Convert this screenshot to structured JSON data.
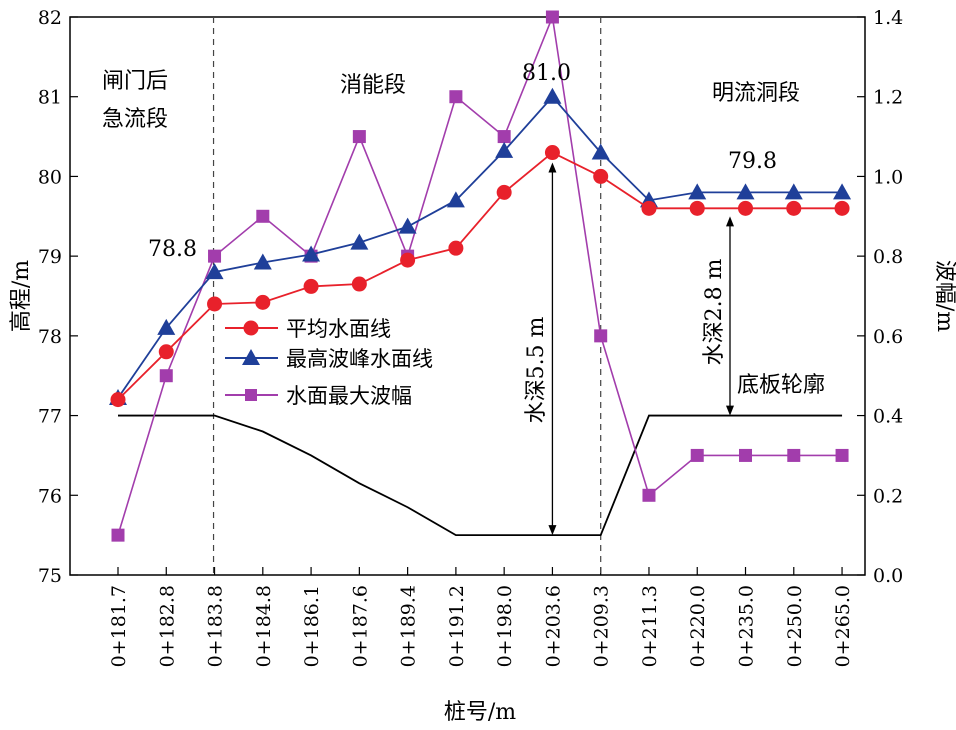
{
  "chart_data": {
    "type": "line",
    "x_label": "桩号/m",
    "y_left_label": "高程/m",
    "y_right_label": "波幅/m",
    "categories": [
      "0+181.7",
      "0+182.8",
      "0+183.8",
      "0+184.8",
      "0+186.1",
      "0+187.6",
      "0+189.4",
      "0+191.2",
      "0+198.0",
      "0+203.6",
      "0+209.3",
      "0+211.3",
      "0+220.0",
      "0+235.0",
      "0+250.0",
      "0+265.0"
    ],
    "y_left_range": [
      75,
      82
    ],
    "y_left_ticks": [
      "75",
      "76",
      "77",
      "78",
      "79",
      "80",
      "81",
      "82"
    ],
    "y_right_range": [
      0,
      1.4
    ],
    "y_right_ticks": [
      "0.0",
      "0.2",
      "0.4",
      "0.6",
      "0.8",
      "1.0",
      "1.2",
      "1.4"
    ],
    "series": [
      {
        "name": "平均水面线",
        "axis": "left",
        "color": "#e8212b",
        "marker": "circle",
        "values": [
          77.2,
          77.8,
          78.4,
          78.42,
          78.62,
          78.65,
          78.95,
          79.1,
          79.8,
          80.3,
          80.0,
          79.6,
          79.6,
          79.6,
          79.6,
          79.6
        ]
      },
      {
        "name": "最高波峰水面线",
        "axis": "left",
        "color": "#1f3f99",
        "marker": "triangle",
        "values": [
          77.22,
          78.1,
          78.8,
          78.92,
          79.02,
          79.17,
          79.37,
          79.7,
          80.32,
          81.0,
          80.3,
          79.7,
          79.8,
          79.8,
          79.8,
          79.8
        ]
      },
      {
        "name": "水面最大波幅",
        "axis": "right",
        "color": "#a23dac",
        "marker": "square",
        "values": [
          0.1,
          0.5,
          0.8,
          0.9,
          0.8,
          1.1,
          0.8,
          1.2,
          1.1,
          1.4,
          0.6,
          0.2,
          0.3,
          0.3,
          0.3,
          0.3
        ]
      },
      {
        "name": "底板轮廓",
        "axis": "left",
        "color": "#000000",
        "marker": "none",
        "values": [
          77.0,
          77.0,
          77.0,
          76.8,
          76.5,
          76.15,
          75.85,
          75.5,
          75.5,
          75.5,
          75.5,
          77.0,
          77.0,
          77.0,
          77.0,
          77.0
        ]
      }
    ],
    "dividers_after_index": [
      2,
      10
    ],
    "sections": [
      "闸门后",
      "急流段",
      "消能段",
      "明流洞段"
    ],
    "annotations": {
      "val_78_8": "78.8",
      "val_81_0": "81.0",
      "val_79_8": "79.8",
      "depth1": "水深5.5 m",
      "depth2": "水深2.8 m",
      "floor": "底板轮廓"
    },
    "legend_position": "center-left"
  }
}
